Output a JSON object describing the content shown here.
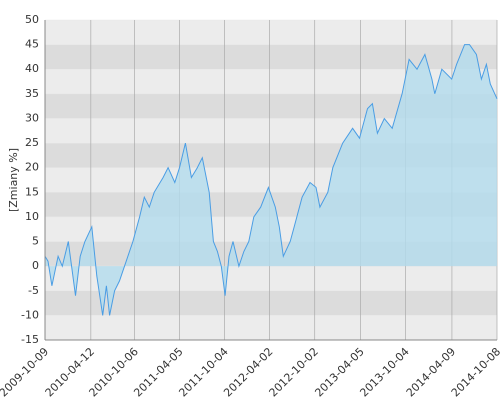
{
  "chart_data": {
    "type": "area",
    "y_axis_label": "[Zmiany %]",
    "x": [
      "2009-10-09",
      "2009-10-21",
      "2009-11-06",
      "2009-12-01",
      "2009-12-18",
      "2010-01-11",
      "2010-02-09",
      "2010-02-28",
      "2010-03-19",
      "2010-04-16",
      "2010-05-06",
      "2010-05-30",
      "2010-06-14",
      "2010-06-27",
      "2010-07-17",
      "2010-08-06",
      "2010-08-26",
      "2010-09-29",
      "2010-10-26",
      "2010-11-14",
      "2010-12-04",
      "2010-12-24",
      "2011-01-29",
      "2011-02-18",
      "2011-03-17",
      "2011-04-05",
      "2011-04-29",
      "2011-05-23",
      "2011-06-16",
      "2011-07-06",
      "2011-08-03",
      "2011-08-20",
      "2011-09-05",
      "2011-09-21",
      "2011-10-06",
      "2011-10-22",
      "2011-11-07",
      "2011-12-01",
      "2011-12-21",
      "2012-01-10",
      "2012-01-30",
      "2012-02-27",
      "2012-03-29",
      "2012-04-26",
      "2012-05-12",
      "2012-05-28",
      "2012-06-25",
      "2012-07-11",
      "2012-08-12",
      "2012-09-13",
      "2012-10-07",
      "2012-10-23",
      "2012-11-24",
      "2012-12-14",
      "2013-01-23",
      "2013-03-04",
      "2013-04-01",
      "2013-05-03",
      "2013-05-23",
      "2013-06-12",
      "2013-07-10",
      "2013-08-11",
      "2013-09-20",
      "2013-10-18",
      "2013-11-19",
      "2013-12-21",
      "2014-01-18",
      "2014-01-30",
      "2014-02-27",
      "2014-04-08",
      "2014-04-28",
      "2014-05-30",
      "2014-06-19",
      "2014-07-17",
      "2014-08-06",
      "2014-08-26",
      "2014-09-11",
      "2014-10-08"
    ],
    "series": [
      {
        "color": "#4a9de4",
        "fill": "#b3dcee",
        "values": [
          2,
          1,
          -4,
          2,
          0,
          5,
          -6,
          2,
          5,
          8,
          -2,
          -10,
          -4,
          -10,
          -5,
          -3,
          0,
          5,
          10,
          14,
          12,
          15,
          18,
          20,
          17,
          20,
          25,
          18,
          20,
          22,
          15,
          5,
          3,
          0,
          -6,
          2,
          5,
          0,
          3,
          5,
          10,
          12,
          16,
          12,
          8,
          2,
          5,
          8,
          14,
          17,
          16,
          12,
          15,
          20,
          25,
          28,
          26,
          32,
          33,
          27,
          30,
          28,
          35,
          42,
          40,
          43,
          38,
          35,
          40,
          38,
          41,
          45,
          45,
          43,
          38,
          41,
          37,
          34
        ]
      }
    ],
    "xlim": [
      "2009-10-09",
      "2014-10-08"
    ],
    "xticks": [
      "2009-10-09",
      "2010-04-12",
      "2010-10-06",
      "2011-04-05",
      "2011-10-04",
      "2012-04-02",
      "2012-10-02",
      "2013-04-05",
      "2013-10-04",
      "2014-04-09",
      "2014-10-08"
    ],
    "ylim": [
      -15,
      50
    ],
    "yticks": [
      -15,
      -10,
      -5,
      0,
      5,
      10,
      15,
      20,
      25,
      30,
      35,
      40,
      45,
      50
    ],
    "grid": true
  }
}
